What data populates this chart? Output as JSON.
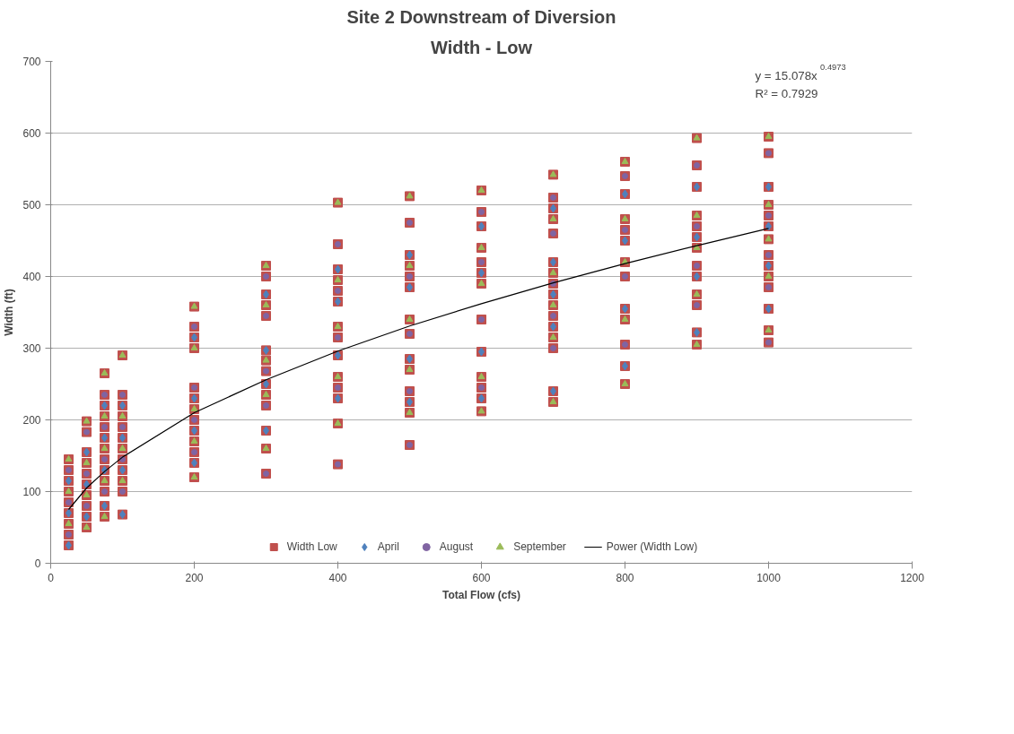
{
  "chart_data": {
    "type": "scatter",
    "title": "Site 2 Downstream of Diversion",
    "subtitle": "Width - Low",
    "xlabel": "Total Flow (cfs)",
    "ylabel": "Width (ft)",
    "xlim": [
      0,
      1200
    ],
    "xticks": [
      0,
      200,
      400,
      600,
      800,
      1000,
      1200
    ],
    "ylim": [
      0,
      700
    ],
    "yticks": [
      0,
      100,
      200,
      300,
      400,
      500,
      600,
      700
    ],
    "grid": "y",
    "legend": "bottom",
    "annotations": [
      "y = 15.078x$^{0.4973}$",
      "R² = 0.7929"
    ],
    "series": [
      {
        "name": "Width Low",
        "color": "#c0504d",
        "marker": "square",
        "x": [
          25,
          25,
          25,
          25,
          25,
          25,
          25,
          25,
          25,
          50,
          50,
          50,
          50,
          50,
          50,
          50,
          50,
          50,
          50,
          75,
          75,
          75,
          75,
          75,
          75,
          75,
          75,
          75,
          75,
          75,
          75,
          75,
          100,
          100,
          100,
          100,
          100,
          100,
          100,
          100,
          100,
          100,
          100,
          100,
          200,
          200,
          200,
          200,
          200,
          200,
          200,
          200,
          200,
          200,
          200,
          200,
          200,
          300,
          300,
          300,
          300,
          300,
          300,
          300,
          300,
          300,
          300,
          300,
          300,
          300,
          300,
          400,
          400,
          400,
          400,
          400,
          400,
          400,
          400,
          400,
          400,
          400,
          400,
          400,
          400,
          500,
          500,
          500,
          500,
          500,
          500,
          500,
          500,
          500,
          500,
          500,
          500,
          500,
          500,
          600,
          600,
          600,
          600,
          600,
          600,
          600,
          600,
          600,
          600,
          600,
          600,
          600,
          700,
          700,
          700,
          700,
          700,
          700,
          700,
          700,
          700,
          700,
          700,
          700,
          700,
          700,
          700,
          700,
          800,
          800,
          800,
          800,
          800,
          800,
          800,
          800,
          800,
          800,
          800,
          800,
          800,
          900,
          900,
          900,
          900,
          900,
          900,
          900,
          900,
          900,
          900,
          900,
          900,
          900,
          1000,
          1000,
          1000,
          1000,
          1000,
          1000,
          1000,
          1000,
          1000,
          1000,
          1000,
          1000,
          1000,
          1000
        ],
        "values": [
          145,
          130,
          115,
          100,
          85,
          70,
          55,
          40,
          25,
          198,
          183,
          155,
          140,
          125,
          110,
          95,
          80,
          65,
          50,
          265,
          235,
          220,
          205,
          190,
          175,
          160,
          145,
          130,
          115,
          100,
          80,
          65,
          290,
          235,
          220,
          205,
          190,
          175,
          160,
          145,
          130,
          115,
          100,
          68,
          358,
          330,
          315,
          300,
          245,
          230,
          215,
          200,
          185,
          170,
          155,
          140,
          120,
          415,
          400,
          375,
          360,
          345,
          297,
          283,
          268,
          250,
          235,
          220,
          185,
          160,
          125,
          503,
          445,
          410,
          395,
          380,
          365,
          330,
          315,
          290,
          260,
          245,
          230,
          195,
          138,
          512,
          475,
          430,
          415,
          400,
          385,
          340,
          320,
          285,
          270,
          240,
          225,
          210,
          165,
          520,
          490,
          470,
          440,
          420,
          405,
          390,
          340,
          295,
          260,
          245,
          230,
          212,
          542,
          510,
          495,
          480,
          460,
          420,
          405,
          390,
          375,
          360,
          345,
          330,
          315,
          300,
          240,
          225,
          560,
          540,
          515,
          480,
          465,
          450,
          420,
          400,
          355,
          340,
          305,
          275,
          250,
          593,
          555,
          525,
          485,
          470,
          455,
          440,
          415,
          400,
          375,
          360,
          322,
          305,
          595,
          572,
          525,
          500,
          485,
          470,
          452,
          430,
          415,
          400,
          385,
          355,
          325,
          308
        ]
      },
      {
        "name": "April",
        "color": "#4f81bd",
        "marker": "diamond",
        "x": [
          25,
          25,
          25,
          50,
          50,
          50,
          75,
          75,
          75,
          75,
          100,
          100,
          100,
          100,
          200,
          200,
          200,
          200,
          300,
          300,
          300,
          300,
          400,
          400,
          400,
          400,
          500,
          500,
          500,
          500,
          600,
          600,
          600,
          600,
          700,
          700,
          700,
          700,
          700,
          800,
          800,
          800,
          800,
          900,
          900,
          900,
          900,
          1000,
          1000,
          1000,
          1000
        ],
        "values": [
          115,
          70,
          25,
          155,
          110,
          65,
          220,
          175,
          130,
          80,
          220,
          175,
          130,
          68,
          315,
          230,
          185,
          140,
          375,
          297,
          250,
          185,
          410,
          365,
          290,
          230,
          430,
          385,
          285,
          225,
          470,
          405,
          295,
          230,
          495,
          420,
          375,
          330,
          240,
          515,
          450,
          355,
          275,
          525,
          455,
          400,
          322,
          525,
          470,
          415,
          355
        ]
      },
      {
        "name": "August",
        "color": "#8064a2",
        "marker": "circle",
        "x": [
          25,
          25,
          25,
          50,
          50,
          50,
          75,
          75,
          75,
          75,
          100,
          100,
          100,
          100,
          200,
          200,
          200,
          200,
          300,
          300,
          300,
          300,
          300,
          400,
          400,
          400,
          400,
          400,
          500,
          500,
          500,
          500,
          500,
          600,
          600,
          600,
          600,
          700,
          700,
          700,
          700,
          700,
          800,
          800,
          800,
          800,
          900,
          900,
          900,
          900,
          1000,
          1000,
          1000,
          1000,
          1000
        ],
        "values": [
          130,
          85,
          40,
          183,
          125,
          80,
          235,
          190,
          145,
          100,
          235,
          190,
          145,
          100,
          330,
          245,
          200,
          155,
          400,
          345,
          268,
          220,
          125,
          445,
          380,
          315,
          245,
          138,
          475,
          400,
          320,
          240,
          165,
          490,
          420,
          340,
          245,
          510,
          460,
          390,
          345,
          300,
          540,
          465,
          400,
          305,
          555,
          470,
          415,
          360,
          572,
          485,
          430,
          385,
          308
        ]
      },
      {
        "name": "September",
        "color": "#9bbb59",
        "marker": "triangle",
        "x": [
          25,
          25,
          25,
          50,
          50,
          50,
          50,
          75,
          75,
          75,
          75,
          75,
          100,
          100,
          100,
          100,
          200,
          200,
          200,
          200,
          200,
          300,
          300,
          300,
          300,
          300,
          400,
          400,
          400,
          400,
          400,
          500,
          500,
          500,
          500,
          500,
          600,
          600,
          600,
          600,
          600,
          700,
          700,
          700,
          700,
          700,
          700,
          800,
          800,
          800,
          800,
          800,
          900,
          900,
          900,
          900,
          900,
          1000,
          1000,
          1000,
          1000,
          1000
        ],
        "values": [
          145,
          100,
          55,
          198,
          140,
          95,
          50,
          265,
          205,
          160,
          115,
          65,
          290,
          205,
          160,
          115,
          358,
          300,
          215,
          170,
          120,
          415,
          360,
          283,
          235,
          160,
          503,
          395,
          330,
          260,
          195,
          512,
          415,
          340,
          270,
          210,
          520,
          440,
          390,
          260,
          212,
          542,
          480,
          405,
          360,
          315,
          225,
          560,
          480,
          420,
          340,
          250,
          593,
          485,
          440,
          375,
          305,
          595,
          500,
          452,
          400,
          325
        ]
      },
      {
        "name": "Power (Width Low)",
        "type": "line",
        "color": "#000000",
        "marker": "none",
        "line_style": "solid",
        "x": [
          25,
          50,
          75,
          100,
          200,
          300,
          400,
          500,
          600,
          700,
          800,
          900,
          1000
        ],
        "values": [
          75,
          105,
          128,
          148,
          210,
          256,
          296,
          331,
          362,
          391,
          418,
          443,
          467
        ]
      }
    ]
  }
}
